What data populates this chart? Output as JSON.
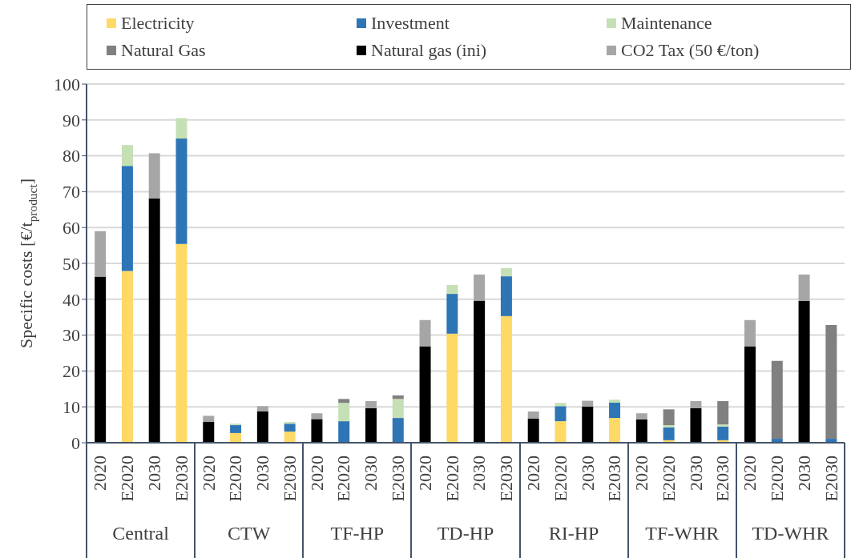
{
  "chart_data": {
    "type": "bar",
    "stacked": true,
    "ylabel": "Specific costs [€/t$_{product}$]",
    "categories": [
      "2020",
      "E2020",
      "2030",
      "E2030",
      "2020",
      "E2020",
      "2030",
      "E2030",
      "2020",
      "E2020",
      "2030",
      "E2030",
      "2020",
      "E2020",
      "2030",
      "E2030",
      "2020",
      "E2020",
      "2030",
      "E2030",
      "2020",
      "E2020",
      "2030",
      "E2030",
      "2020",
      "E2020",
      "2030",
      "E2030"
    ],
    "annotations": [
      "Central",
      "CTW",
      "TF-HP",
      "TD-HP",
      "RI-HP",
      "TF-WHR",
      "TD-WHR"
    ],
    "series": [
      {
        "name": "Electricity",
        "color": "#ffd966",
        "values": [
          null,
          47.9,
          null,
          55.4,
          null,
          2.7,
          null,
          3.1,
          null,
          null,
          null,
          null,
          null,
          30.4,
          null,
          35.3,
          null,
          6.0,
          null,
          6.9,
          null,
          0.7,
          null,
          0.7,
          null,
          null,
          null,
          null
        ]
      },
      {
        "name": "Investment",
        "color": "#2e75b6",
        "values": [
          null,
          29.3,
          null,
          29.4,
          null,
          2.2,
          null,
          2.2,
          null,
          6.0,
          null,
          6.9,
          null,
          11.1,
          null,
          11.1,
          null,
          4.2,
          null,
          4.3,
          null,
          3.6,
          null,
          3.8,
          null,
          1.1,
          null,
          1.1
        ]
      },
      {
        "name": "Maintenance",
        "color": "#c5e0b4",
        "values": [
          null,
          5.8,
          null,
          5.7,
          null,
          0.4,
          null,
          0.5,
          null,
          5.1,
          null,
          5.3,
          null,
          2.5,
          null,
          2.3,
          null,
          0.9,
          null,
          0.8,
          null,
          0.6,
          null,
          0.6,
          null,
          null,
          null,
          null
        ]
      },
      {
        "name": "Natural Gas",
        "color": "#808080",
        "values": [
          null,
          null,
          null,
          null,
          null,
          null,
          null,
          null,
          null,
          1.1,
          null,
          1.0,
          null,
          null,
          null,
          null,
          null,
          null,
          null,
          null,
          null,
          4.4,
          null,
          6.5,
          null,
          21.7,
          null,
          31.7
        ]
      },
      {
        "name": "Natural gas (ini)",
        "color": "#000000",
        "values": [
          46.3,
          null,
          68.1,
          null,
          5.8,
          null,
          8.7,
          null,
          6.6,
          null,
          9.6,
          null,
          26.9,
          null,
          39.6,
          null,
          6.7,
          null,
          10.1,
          null,
          6.5,
          null,
          9.6,
          null,
          26.9,
          null,
          39.5,
          null
        ]
      },
      {
        "name": "CO2 Tax (50 €/ton)",
        "color": "#a6a6a6",
        "values": [
          12.7,
          null,
          12.6,
          null,
          1.7,
          null,
          1.5,
          null,
          1.6,
          null,
          2.0,
          null,
          7.3,
          null,
          7.3,
          null,
          2.0,
          null,
          1.6,
          null,
          1.7,
          null,
          2.0,
          null,
          7.3,
          null,
          7.4,
          null
        ]
      }
    ],
    "ylim": [
      0,
      100
    ],
    "yticks": [
      0,
      10,
      20,
      30,
      40,
      50,
      60,
      70,
      80,
      90,
      100
    ],
    "grid": "y",
    "legend": "top"
  }
}
